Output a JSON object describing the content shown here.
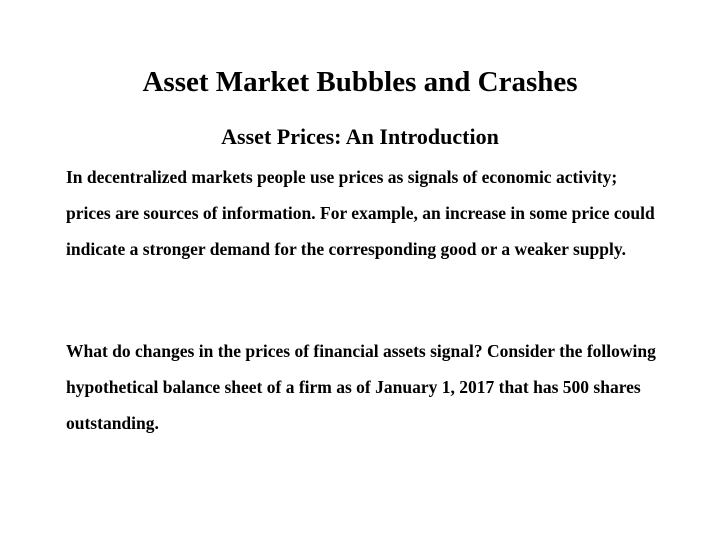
{
  "title": "Asset Market Bubbles and Crashes",
  "subtitle": "Asset Prices: An Introduction",
  "paragraphs": [
    "In decentralized markets people use prices as signals of economic activity; prices are sources of information. For example, an increase in some price could indicate a stronger demand for the corresponding good or a weaker supply.",
    "What do changes in the prices of financial assets signal? Consider the following hypothetical balance sheet of a firm as of January 1, 2017 that has 500 shares outstanding."
  ]
}
